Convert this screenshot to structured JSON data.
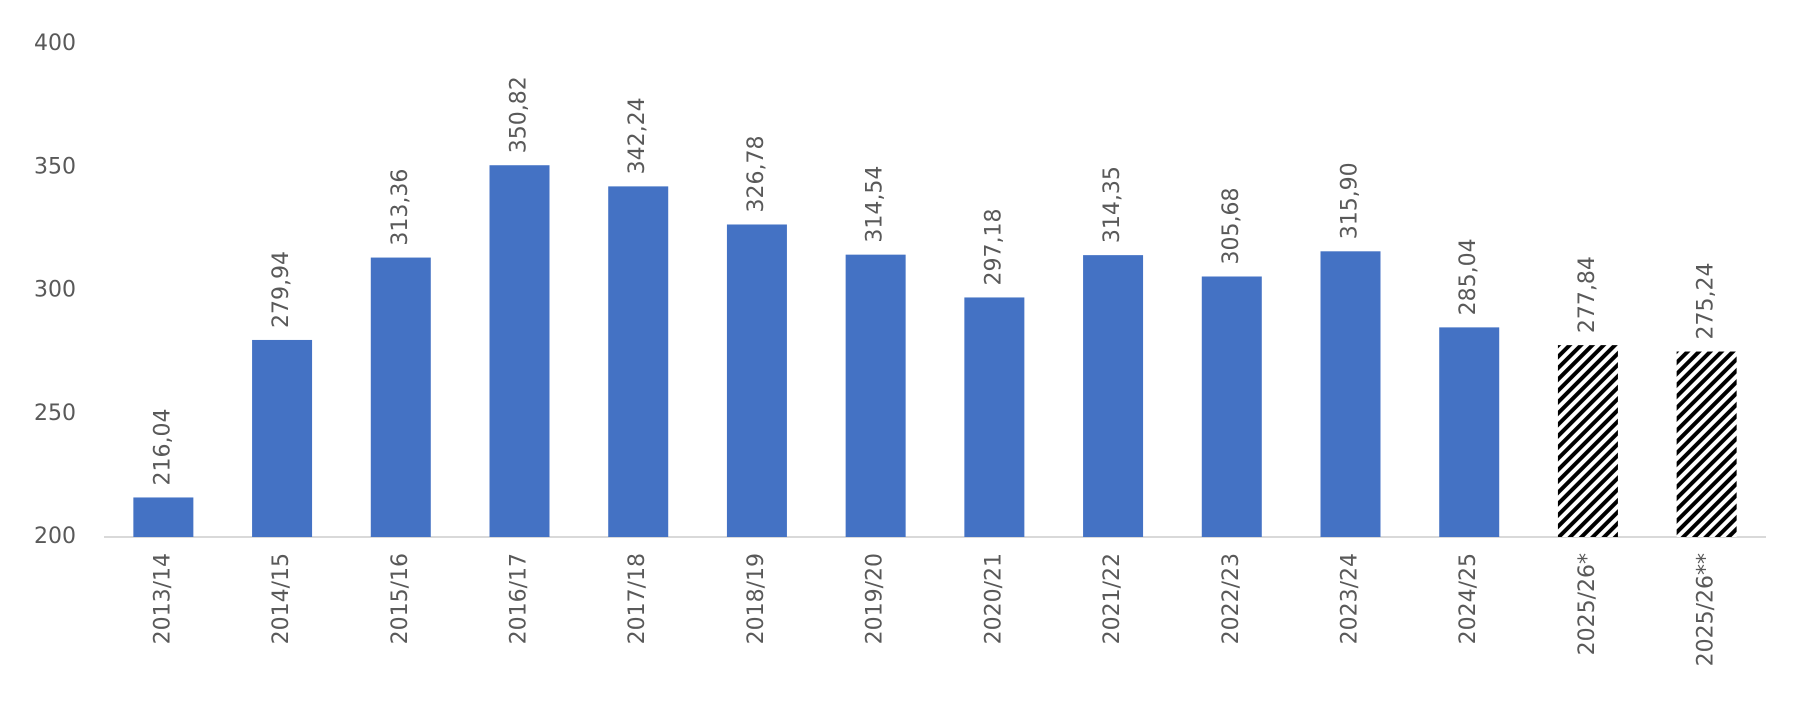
{
  "chart_data": {
    "type": "bar",
    "categories": [
      "2013/14",
      "2014/15",
      "2015/16",
      "2016/17",
      "2017/18",
      "2018/19",
      "2019/20",
      "2020/21",
      "2021/22",
      "2022/23",
      "2023/24",
      "2024/25",
      "2025/26*",
      "2025/26**"
    ],
    "values": [
      216.04,
      279.94,
      313.36,
      350.82,
      342.24,
      326.78,
      314.54,
      297.18,
      314.35,
      305.68,
      315.9,
      285.04,
      277.84,
      275.24
    ],
    "value_labels": [
      "216,04",
      "279,94",
      "313,36",
      "350,82",
      "342,24",
      "326,78",
      "314,54",
      "297,18",
      "314,35",
      "305,68",
      "315,90",
      "285,04",
      "277,84",
      "275,24"
    ],
    "color": "#4472c4",
    "hatched": [
      false,
      false,
      false,
      false,
      false,
      false,
      false,
      false,
      false,
      false,
      false,
      false,
      true,
      true
    ],
    "ylim": [
      200,
      400
    ],
    "yticks": [
      200,
      250,
      300,
      350,
      400
    ],
    "grid": false
  }
}
